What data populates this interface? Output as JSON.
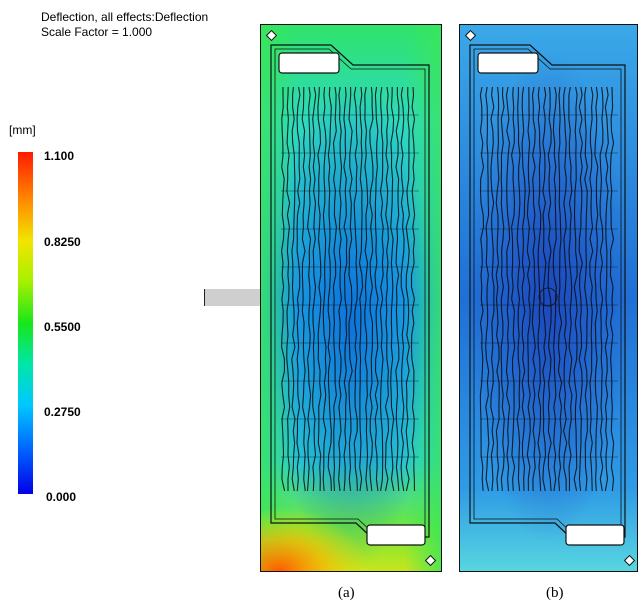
{
  "header": {
    "title": "Deflection, all effects:Deflection",
    "scale_factor": "Scale Factor = 1.000"
  },
  "legend": {
    "units": "[mm]",
    "ticks": [
      "1.100",
      "0.8250",
      "0.5500",
      "0.2750",
      "0.000"
    ],
    "range": [
      0.0,
      1.1
    ],
    "colors": {
      "max": "#ff1a00",
      "upper": "#f2e500",
      "mid": "#19e61a",
      "lower": "#00c8ff",
      "min": "#0000e6"
    }
  },
  "panels": [
    {
      "caption": "(a)"
    },
    {
      "caption": "(b)"
    }
  ]
}
